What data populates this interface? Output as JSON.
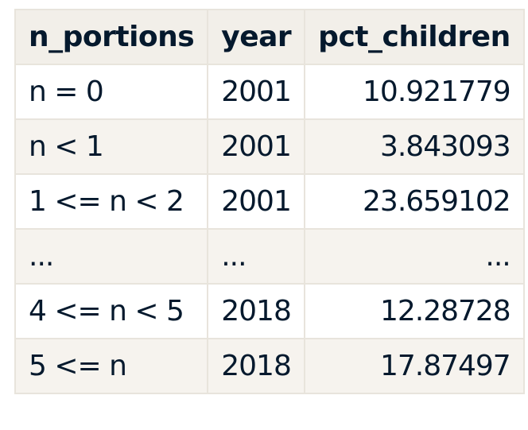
{
  "table": {
    "headers": [
      "n_portions",
      "year",
      "pct_children"
    ],
    "rows": [
      [
        "n = 0",
        "2001",
        "10.921779"
      ],
      [
        "n < 1",
        "2001",
        "3.843093"
      ],
      [
        "1 <= n < 2",
        "2001",
        "23.659102"
      ],
      [
        "...",
        "...",
        "..."
      ],
      [
        "4 <= n < 5",
        "2018",
        "12.28728"
      ],
      [
        "5 <= n",
        "2018",
        "17.87497"
      ]
    ]
  }
}
